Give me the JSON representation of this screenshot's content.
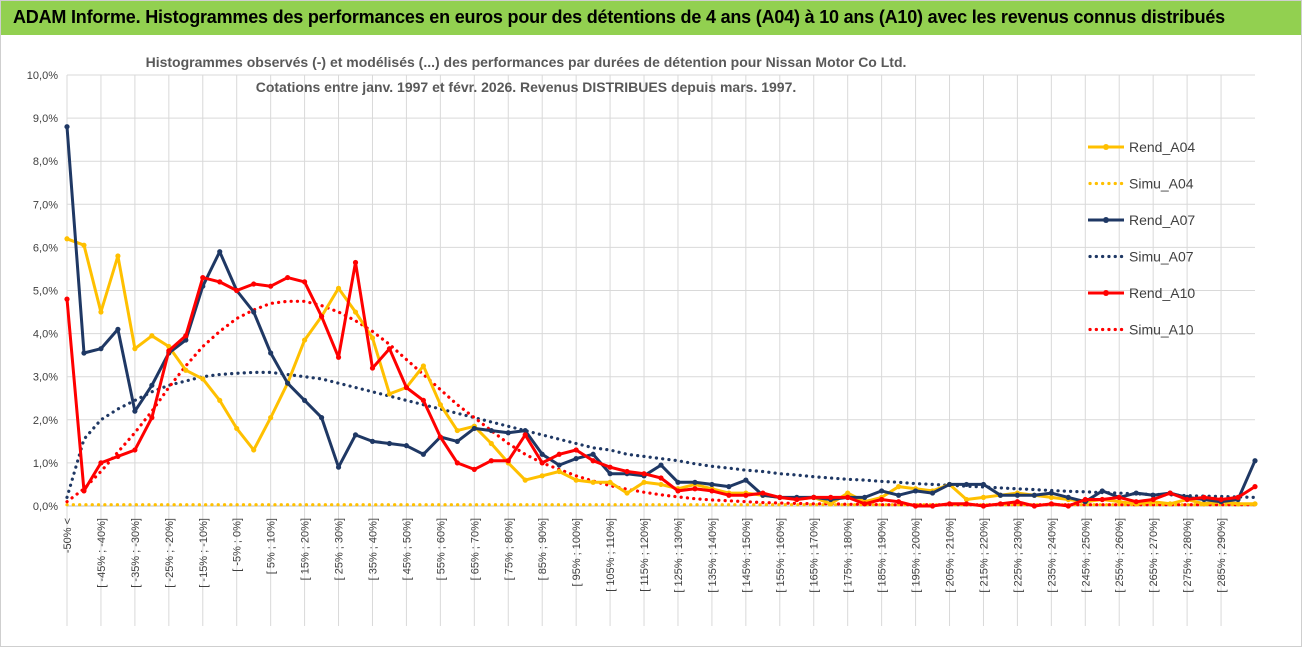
{
  "header": {
    "title": "ADAM Informe. Histogrammes des performances en euros pour des détentions de 4 ans (A04) à 10 ans (A10) avec les revenus connus distribués"
  },
  "colors": {
    "banner": "#92d050",
    "A04": "#ffc000",
    "A07": "#1f3864",
    "A10": "#ff0000"
  },
  "chart_data": {
    "type": "line",
    "title": "Histogrammes observés (-) et modélisés (...) des performances par durées de détention pour Nissan Motor Co Ltd.",
    "subtitle": "Cotations entre janv. 1997 et févr. 2026. Revenus DISTRIBUES depuis mars. 1997.",
    "ylim": [
      0,
      10
    ],
    "yticks": [
      "0,0%",
      "1,0%",
      "2,0%",
      "3,0%",
      "4,0%",
      "5,0%",
      "6,0%",
      "7,0%",
      "8,0%",
      "9,0%",
      "10,0%"
    ],
    "legend_position": "right",
    "categories": [
      "-50% <",
      "[ -50% ; -45%]",
      "[ -45% ; -40%]",
      "[ -40% ; -35%]",
      "[ -35% ; -30%]",
      "[ -30% ; -25%]",
      "[ -25% ; -20%]",
      "[ -20% ; -15%]",
      "[ -15% ; -10%]",
      "[ -10% ; -5%]",
      "[ -5% ; 0%]",
      "[ 0% ; 5%]",
      "[ 5% ; 10%]",
      "[ 10% ; 15%]",
      "[ 15% ; 20%]",
      "[ 20% ; 25%]",
      "[ 25% ; 30%]",
      "[ 30% ; 35%]",
      "[ 35% ; 40%]",
      "[ 40% ; 45%]",
      "[ 45% ; 50%]",
      "[ 50% ; 55%]",
      "[ 55% ; 60%]",
      "[ 60% ; 65%]",
      "[ 65% ; 70%]",
      "[ 70% ; 75%]",
      "[ 75% ; 80%]",
      "[ 80% ; 85%]",
      "[ 85% ; 90%]",
      "[ 90% ; 95%]",
      "[ 95% ; 100%]",
      "[ 100% ; 105%]",
      "[ 105% ; 110%]",
      "[ 110% ; 115%]",
      "[ 115% ; 120%]",
      "[ 120% ; 125%]",
      "[ 125% ; 130%]",
      "[ 130% ; 135%]",
      "[ 135% ; 140%]",
      "[ 140% ; 145%]",
      "[ 145% ; 150%]",
      "[ 150% ; 155%]",
      "[ 155% ; 160%]",
      "[ 160% ; 165%]",
      "[ 165% ; 170%]",
      "[ 170% ; 175%]",
      "[ 175% ; 180%]",
      "[ 180% ; 185%]",
      "[ 185% ; 190%]",
      "[ 190% ; 195%]",
      "[ 195% ; 200%]",
      "[ 200% ; 205%]",
      "[ 205% ; 210%]",
      "[ 210% ; 215%]",
      "[ 215% ; 220%]",
      "[ 220% ; 225%]",
      "[ 225% ; 230%]",
      "[ 230% ; 235%]",
      "[ 235% ; 240%]",
      "[ 240% ; 245%]",
      "[ 245% ; 250%]",
      "[ 250% ; 255%]",
      "[ 255% ; 260%]",
      "[ 260% ; 265%]",
      "[ 265% ; 270%]",
      "[ 270% ; 275%]",
      "[ 275% ; 280%]",
      "[ 280% ; 285%]",
      "[ 285% ; 290%]",
      "[ 290% ; 295%]",
      "> 295%"
    ],
    "x_labels_shown": [
      "-50% <",
      "[ -45% ; -40%]",
      "[ -35% ; -30%]",
      "[ -25% ; -20%]",
      "[ -15% ; -10%]",
      "[ -5% ; 0%]",
      "[ 5% ; 10%]",
      "[ 15% ; 20%]",
      "[ 25% ; 30%]",
      "[ 35% ; 40%]",
      "[ 45% ; 50%]",
      "[ 55% ; 60%]",
      "[ 65% ; 70%]",
      "[ 75% ; 80%]",
      "[ 85% ; 90%]",
      "[ 95% ; 100%]",
      "[ 105% ; 110%]",
      "[ 115% ; 120%]",
      "[ 125% ; 130%]",
      "[ 135% ; 140%]",
      "[ 145% ; 150%]",
      "[ 155% ; 160%]",
      "[ 165% ; 170%]",
      "[ 175% ; 180%]",
      "[ 185% ; 190%]",
      "[ 195% ; 200%]",
      "[ 205% ; 210%]",
      "[ 215% ; 220%]",
      "[ 225% ; 230%]",
      "[ 235% ; 240%]",
      "[ 245% ; 250%]",
      "[ 255% ; 260%]",
      "[ 265% ; 270%]",
      "[ 275% ; 280%]",
      "[ 285% ; 290%]"
    ],
    "series": [
      {
        "name": "Rend_A04",
        "style": "solid",
        "color": "#ffc000",
        "values": [
          6.2,
          6.05,
          4.5,
          5.8,
          3.65,
          3.95,
          3.7,
          3.15,
          2.95,
          2.45,
          1.8,
          1.3,
          2.05,
          2.85,
          3.85,
          4.4,
          5.05,
          4.5,
          3.9,
          2.6,
          2.75,
          3.25,
          2.35,
          1.75,
          1.85,
          1.45,
          1.0,
          0.6,
          0.7,
          0.8,
          0.6,
          0.55,
          0.55,
          0.3,
          0.55,
          0.5,
          0.4,
          0.5,
          0.4,
          0.3,
          0.3,
          0.25,
          0.2,
          0.15,
          0.2,
          0.05,
          0.3,
          0.1,
          0.2,
          0.45,
          0.4,
          0.35,
          0.5,
          0.15,
          0.2,
          0.25,
          0.3,
          0.25,
          0.2,
          0.15,
          0.1,
          0.15,
          0.1,
          0.05,
          0.1,
          0.05,
          0.15,
          0.05,
          0.1,
          0.05,
          0.05
        ]
      },
      {
        "name": "Simu_A04",
        "style": "dotted",
        "color": "#ffc000",
        "values": [
          0.03,
          0.03,
          0.03,
          0.03,
          0.03,
          0.03,
          0.03,
          0.03,
          0.03,
          0.03,
          0.03,
          0.03,
          0.03,
          0.03,
          0.03,
          0.03,
          0.03,
          0.03,
          0.03,
          0.03,
          0.03,
          0.03,
          0.03,
          0.03,
          0.03,
          0.03,
          0.03,
          0.03,
          0.03,
          0.03,
          0.03,
          0.03,
          0.03,
          0.03,
          0.03,
          0.03,
          0.03,
          0.03,
          0.03,
          0.03,
          0.03,
          0.03,
          0.03,
          0.03,
          0.03,
          0.03,
          0.03,
          0.03,
          0.03,
          0.03,
          0.03,
          0.03,
          0.03,
          0.03,
          0.03,
          0.03,
          0.03,
          0.03,
          0.03,
          0.03,
          0.03,
          0.03,
          0.03,
          0.03,
          0.03,
          0.03,
          0.03,
          0.03,
          0.03,
          0.03,
          0.03
        ]
      },
      {
        "name": "Rend_A07",
        "style": "solid",
        "color": "#1f3864",
        "values": [
          8.8,
          3.55,
          3.65,
          4.1,
          2.2,
          2.8,
          3.55,
          3.85,
          5.1,
          5.9,
          5.0,
          4.5,
          3.55,
          2.85,
          2.45,
          2.05,
          0.9,
          1.65,
          1.5,
          1.45,
          1.4,
          1.2,
          1.6,
          1.5,
          1.8,
          1.75,
          1.7,
          1.75,
          1.2,
          0.95,
          1.1,
          1.2,
          0.75,
          0.75,
          0.7,
          0.95,
          0.55,
          0.55,
          0.5,
          0.45,
          0.6,
          0.25,
          0.2,
          0.2,
          0.2,
          0.15,
          0.2,
          0.2,
          0.35,
          0.25,
          0.35,
          0.3,
          0.5,
          0.5,
          0.5,
          0.25,
          0.25,
          0.25,
          0.3,
          0.2,
          0.1,
          0.35,
          0.2,
          0.3,
          0.25,
          0.3,
          0.2,
          0.15,
          0.1,
          0.15,
          1.05
        ]
      },
      {
        "name": "Simu_A07",
        "style": "dotted",
        "color": "#1f3864",
        "values": [
          0.2,
          1.55,
          2.0,
          2.25,
          2.45,
          2.65,
          2.8,
          2.9,
          3.0,
          3.05,
          3.08,
          3.1,
          3.1,
          3.05,
          3.0,
          2.95,
          2.85,
          2.75,
          2.65,
          2.55,
          2.45,
          2.35,
          2.25,
          2.15,
          2.05,
          1.95,
          1.85,
          1.75,
          1.65,
          1.55,
          1.45,
          1.35,
          1.3,
          1.2,
          1.15,
          1.1,
          1.05,
          0.98,
          0.92,
          0.88,
          0.83,
          0.8,
          0.75,
          0.72,
          0.68,
          0.65,
          0.62,
          0.6,
          0.57,
          0.55,
          0.52,
          0.5,
          0.48,
          0.46,
          0.44,
          0.42,
          0.4,
          0.38,
          0.36,
          0.34,
          0.33,
          0.31,
          0.3,
          0.28,
          0.27,
          0.26,
          0.24,
          0.23,
          0.22,
          0.21,
          0.2
        ]
      },
      {
        "name": "Rend_A10",
        "style": "solid",
        "color": "#ff0000",
        "values": [
          4.8,
          0.35,
          1.0,
          1.15,
          1.3,
          2.05,
          3.6,
          3.95,
          5.3,
          5.2,
          5.0,
          5.15,
          5.1,
          5.3,
          5.2,
          4.4,
          3.45,
          5.65,
          3.2,
          3.65,
          2.75,
          2.45,
          1.6,
          1.0,
          0.85,
          1.05,
          1.05,
          1.65,
          1.0,
          1.2,
          1.3,
          1.05,
          0.9,
          0.8,
          0.75,
          0.65,
          0.35,
          0.4,
          0.35,
          0.25,
          0.25,
          0.3,
          0.2,
          0.15,
          0.2,
          0.2,
          0.2,
          0.05,
          0.15,
          0.1,
          0.0,
          0.0,
          0.05,
          0.05,
          0.0,
          0.05,
          0.1,
          0.0,
          0.05,
          0.0,
          0.15,
          0.15,
          0.2,
          0.1,
          0.15,
          0.3,
          0.15,
          0.2,
          0.15,
          0.2,
          0.45
        ]
      },
      {
        "name": "Simu_A10",
        "style": "dotted",
        "color": "#ff0000",
        "values": [
          0.1,
          0.4,
          0.8,
          1.25,
          1.7,
          2.2,
          2.75,
          3.25,
          3.7,
          4.05,
          4.35,
          4.55,
          4.7,
          4.75,
          4.75,
          4.65,
          4.5,
          4.3,
          4.05,
          3.75,
          3.4,
          3.05,
          2.7,
          2.35,
          2.05,
          1.75,
          1.45,
          1.2,
          1.0,
          0.85,
          0.7,
          0.58,
          0.47,
          0.39,
          0.32,
          0.26,
          0.21,
          0.17,
          0.14,
          0.12,
          0.1,
          0.08,
          0.07,
          0.06,
          0.05,
          0.05,
          0.04,
          0.04,
          0.03,
          0.03,
          0.03,
          0.03,
          0.03,
          0.03,
          0.03,
          0.03,
          0.03,
          0.03,
          0.03,
          0.03,
          0.03,
          0.03,
          0.03,
          0.03,
          0.03,
          0.03,
          0.03,
          0.03,
          0.03,
          0.03,
          0.03
        ]
      }
    ]
  }
}
